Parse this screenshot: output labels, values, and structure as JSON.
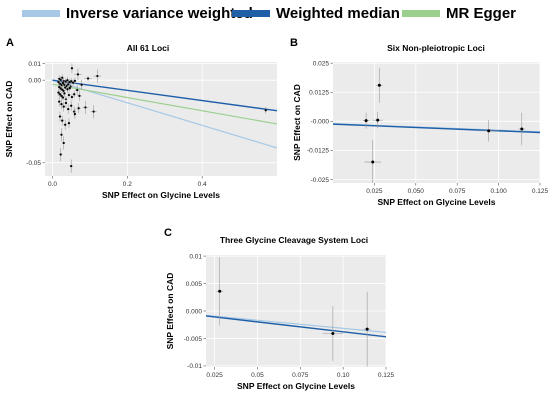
{
  "legend": {
    "items": [
      {
        "label": "Inverse variance weighted",
        "color": "#a6c8e6"
      },
      {
        "label": "Weighted median",
        "color": "#1f5fa8"
      },
      {
        "label": "MR Egger",
        "color": "#9bcf8e"
      }
    ]
  },
  "chart_data": [
    {
      "type": "scatter",
      "letter": "A",
      "title": "All 61 Loci",
      "xlabel": "SNP Effect on Glycine Levels",
      "ylabel": "SNP Effect on CAD",
      "xlim": [
        -0.02,
        0.6
      ],
      "ylim": [
        -0.058,
        0.011
      ],
      "xticks": [
        0.0,
        0.2,
        0.4
      ],
      "xtick_labels": [
        "0.0",
        "0.2",
        "0.4"
      ],
      "yticks": [
        -0.05,
        0.0,
        0.01
      ],
      "ytick_labels": [
        "-0.05",
        "0.00",
        "0.01"
      ],
      "grid": true,
      "points": [
        {
          "x": 0.052,
          "y": 0.0072,
          "xerr": 0.003,
          "yerr": 0.003
        },
        {
          "x": 0.095,
          "y": 0.001,
          "xerr": 0.01,
          "yerr": 0.0015
        },
        {
          "x": 0.068,
          "y": 0.0035,
          "xerr": 0.01,
          "yerr": 0.0035
        },
        {
          "x": 0.12,
          "y": 0.0025,
          "xerr": 0.01,
          "yerr": 0.004
        },
        {
          "x": 0.026,
          "y": 0.0015,
          "xerr": 0.004,
          "yerr": 0.002
        },
        {
          "x": 0.018,
          "y": 0.0008,
          "xerr": 0.004,
          "yerr": 0.002
        },
        {
          "x": 0.022,
          "y": 0.0002,
          "xerr": 0.004,
          "yerr": 0.002
        },
        {
          "x": 0.03,
          "y": -0.0005,
          "xerr": 0.004,
          "yerr": 0.002
        },
        {
          "x": 0.035,
          "y": -0.0008,
          "xerr": 0.004,
          "yerr": 0.002
        },
        {
          "x": 0.04,
          "y": 0.0,
          "xerr": 0.004,
          "yerr": 0.002
        },
        {
          "x": 0.045,
          "y": -0.0012,
          "xerr": 0.004,
          "yerr": 0.002
        },
        {
          "x": 0.05,
          "y": -0.0006,
          "xerr": 0.004,
          "yerr": 0.002
        },
        {
          "x": 0.055,
          "y": -0.0015,
          "xerr": 0.004,
          "yerr": 0.002
        },
        {
          "x": 0.06,
          "y": -0.0004,
          "xerr": 0.004,
          "yerr": 0.002
        },
        {
          "x": 0.016,
          "y": -0.0012,
          "xerr": 0.004,
          "yerr": 0.002
        },
        {
          "x": 0.02,
          "y": -0.0022,
          "xerr": 0.004,
          "yerr": 0.002
        },
        {
          "x": 0.024,
          "y": -0.003,
          "xerr": 0.004,
          "yerr": 0.002
        },
        {
          "x": 0.028,
          "y": -0.0018,
          "xerr": 0.004,
          "yerr": 0.002
        },
        {
          "x": 0.032,
          "y": -0.0028,
          "xerr": 0.004,
          "yerr": 0.002
        },
        {
          "x": 0.038,
          "y": -0.0035,
          "xerr": 0.004,
          "yerr": 0.002
        },
        {
          "x": 0.042,
          "y": -0.0025,
          "xerr": 0.004,
          "yerr": 0.002
        },
        {
          "x": 0.048,
          "y": -0.0038,
          "xerr": 0.004,
          "yerr": 0.002
        },
        {
          "x": 0.018,
          "y": -0.0042,
          "xerr": 0.004,
          "yerr": 0.002
        },
        {
          "x": 0.022,
          "y": -0.005,
          "xerr": 0.004,
          "yerr": 0.002
        },
        {
          "x": 0.026,
          "y": -0.0058,
          "xerr": 0.004,
          "yerr": 0.002
        },
        {
          "x": 0.03,
          "y": -0.0065,
          "xerr": 0.004,
          "yerr": 0.002
        },
        {
          "x": 0.034,
          "y": -0.0045,
          "xerr": 0.004,
          "yerr": 0.002
        },
        {
          "x": 0.04,
          "y": -0.0055,
          "xerr": 0.004,
          "yerr": 0.002
        },
        {
          "x": 0.046,
          "y": -0.0048,
          "xerr": 0.004,
          "yerr": 0.002
        },
        {
          "x": 0.016,
          "y": -0.0075,
          "xerr": 0.004,
          "yerr": 0.002
        },
        {
          "x": 0.02,
          "y": -0.0085,
          "xerr": 0.004,
          "yerr": 0.002
        },
        {
          "x": 0.024,
          "y": -0.0095,
          "xerr": 0.004,
          "yerr": 0.002
        },
        {
          "x": 0.028,
          "y": -0.0105,
          "xerr": 0.004,
          "yerr": 0.002
        },
        {
          "x": 0.032,
          "y": -0.008,
          "xerr": 0.004,
          "yerr": 0.002
        },
        {
          "x": 0.036,
          "y": -0.0115,
          "xerr": 0.004,
          "yerr": 0.002
        },
        {
          "x": 0.044,
          "y": -0.009,
          "xerr": 0.004,
          "yerr": 0.002
        },
        {
          "x": 0.052,
          "y": -0.0102,
          "xerr": 0.004,
          "yerr": 0.002
        },
        {
          "x": 0.058,
          "y": -0.0085,
          "xerr": 0.004,
          "yerr": 0.002
        },
        {
          "x": 0.066,
          "y": -0.006,
          "xerr": 0.006,
          "yerr": 0.003
        },
        {
          "x": 0.072,
          "y": -0.0095,
          "xerr": 0.006,
          "yerr": 0.003
        },
        {
          "x": 0.078,
          "y": -0.0028,
          "xerr": 0.006,
          "yerr": 0.003
        },
        {
          "x": 0.018,
          "y": -0.013,
          "xerr": 0.004,
          "yerr": 0.003
        },
        {
          "x": 0.024,
          "y": -0.0145,
          "xerr": 0.004,
          "yerr": 0.003
        },
        {
          "x": 0.03,
          "y": -0.016,
          "xerr": 0.004,
          "yerr": 0.003
        },
        {
          "x": 0.036,
          "y": -0.0138,
          "xerr": 0.004,
          "yerr": 0.003
        },
        {
          "x": 0.042,
          "y": -0.0175,
          "xerr": 0.004,
          "yerr": 0.003
        },
        {
          "x": 0.05,
          "y": -0.0155,
          "xerr": 0.004,
          "yerr": 0.003
        },
        {
          "x": 0.058,
          "y": -0.019,
          "xerr": 0.004,
          "yerr": 0.003
        },
        {
          "x": 0.07,
          "y": -0.017,
          "xerr": 0.006,
          "yerr": 0.003
        },
        {
          "x": 0.088,
          "y": -0.0165,
          "xerr": 0.008,
          "yerr": 0.004
        },
        {
          "x": 0.11,
          "y": -0.019,
          "xerr": 0.008,
          "yerr": 0.004
        },
        {
          "x": 0.06,
          "y": -0.0205,
          "xerr": 0.004,
          "yerr": 0.003
        },
        {
          "x": 0.02,
          "y": -0.022,
          "xerr": 0.004,
          "yerr": 0.003
        },
        {
          "x": 0.026,
          "y": -0.0245,
          "xerr": 0.004,
          "yerr": 0.003
        },
        {
          "x": 0.034,
          "y": -0.027,
          "xerr": 0.004,
          "yerr": 0.003
        },
        {
          "x": 0.044,
          "y": -0.026,
          "xerr": 0.004,
          "yerr": 0.003
        },
        {
          "x": 0.024,
          "y": -0.033,
          "xerr": 0.004,
          "yerr": 0.004
        },
        {
          "x": 0.03,
          "y": -0.038,
          "xerr": 0.004,
          "yerr": 0.004
        },
        {
          "x": 0.022,
          "y": -0.045,
          "xerr": 0.004,
          "yerr": 0.004
        },
        {
          "x": 0.05,
          "y": -0.052,
          "xerr": 0.004,
          "yerr": 0.004
        },
        {
          "x": 0.57,
          "y": -0.0182,
          "xerr": 0.004,
          "yerr": 0.002
        }
      ],
      "lines": [
        {
          "method": "Inverse variance weighted",
          "color": "#a6c8e6",
          "x0": 0.0,
          "y0": 0.0,
          "x1": 0.6,
          "y1": -0.041
        },
        {
          "method": "MR Egger",
          "color": "#9bcf8e",
          "x0": 0.0,
          "y0": -0.0025,
          "x1": 0.6,
          "y1": -0.0265
        },
        {
          "method": "Weighted median",
          "color": "#1f5fa8",
          "x0": 0.0,
          "y0": 0.0,
          "x1": 0.6,
          "y1": -0.0185
        }
      ]
    },
    {
      "type": "scatter",
      "letter": "B",
      "title": "Six Non-pleiotropic Loci",
      "xlabel": "SNP Effect on Glycine Levels",
      "ylabel": "SNP Effect on CAD",
      "xlim": [
        0.0,
        0.125
      ],
      "ylim": [
        -0.0265,
        0.0255
      ],
      "xticks": [
        0.025,
        0.05,
        0.075,
        0.1,
        0.125
      ],
      "xtick_labels": [
        "0.025",
        "0.050",
        "0.075",
        "0.100",
        "0.125"
      ],
      "yticks": [
        0.025,
        0.0125,
        0.0,
        -0.0125,
        -0.025
      ],
      "ytick_labels": [
        "0.025",
        "0.0125",
        "-0.000",
        "-0.0125",
        "-0.025"
      ],
      "grid": true,
      "points": [
        {
          "x": 0.028,
          "y": 0.0155,
          "xerr": 0.002,
          "yerr": 0.0075
        },
        {
          "x": 0.027,
          "y": 0.0005,
          "xerr": 0.003,
          "yerr": 0.0035
        },
        {
          "x": 0.02,
          "y": 0.0003,
          "xerr": 0.002,
          "yerr": 0.0035
        },
        {
          "x": 0.024,
          "y": -0.0175,
          "xerr": 0.005,
          "yerr": 0.0095
        },
        {
          "x": 0.094,
          "y": -0.0041,
          "xerr": 0.006,
          "yerr": 0.0045
        },
        {
          "x": 0.114,
          "y": -0.0033,
          "xerr": 0.002,
          "yerr": 0.007
        }
      ],
      "lines": [
        {
          "method": "Inverse variance weighted",
          "color": "#a6c8e6",
          "x0": 0.0,
          "y0": -0.001,
          "x1": 0.125,
          "y1": -0.0045
        },
        {
          "method": "Weighted median",
          "color": "#1f5fa8",
          "x0": 0.0,
          "y0": -0.0012,
          "x1": 0.125,
          "y1": -0.0048
        }
      ]
    },
    {
      "type": "scatter",
      "letter": "C",
      "title": "Three Glycine Cleavage System Loci",
      "xlabel": "SNP Effect on Glycine Levels",
      "ylabel": "SNP Effect on CAD",
      "xlim": [
        0.02,
        0.125
      ],
      "ylim": [
        -0.0102,
        0.0102
      ],
      "xticks": [
        0.025,
        0.05,
        0.075,
        0.1,
        0.125
      ],
      "xtick_labels": [
        "0.025",
        "0.05",
        "0.075",
        "0.10",
        "0.125"
      ],
      "yticks": [
        0.01,
        0.005,
        0.0,
        -0.005,
        -0.01
      ],
      "ytick_labels": [
        "0.01",
        "0.005",
        "0.000",
        "-0.005",
        "-0.01"
      ],
      "grid": true,
      "points": [
        {
          "x": 0.028,
          "y": 0.0036,
          "xerr": 0.002,
          "yerr": 0.0062
        },
        {
          "x": 0.094,
          "y": -0.0041,
          "xerr": 0.006,
          "yerr": 0.005
        },
        {
          "x": 0.114,
          "y": -0.0033,
          "xerr": 0.002,
          "yerr": 0.0068
        }
      ],
      "lines": [
        {
          "method": "Inverse variance weighted",
          "color": "#a6c8e6",
          "x0": 0.02,
          "y0": -0.0008,
          "x1": 0.125,
          "y1": -0.0039
        },
        {
          "method": "Weighted median",
          "color": "#1f5fa8",
          "x0": 0.02,
          "y0": -0.0009,
          "x1": 0.125,
          "y1": -0.0047
        }
      ]
    }
  ]
}
